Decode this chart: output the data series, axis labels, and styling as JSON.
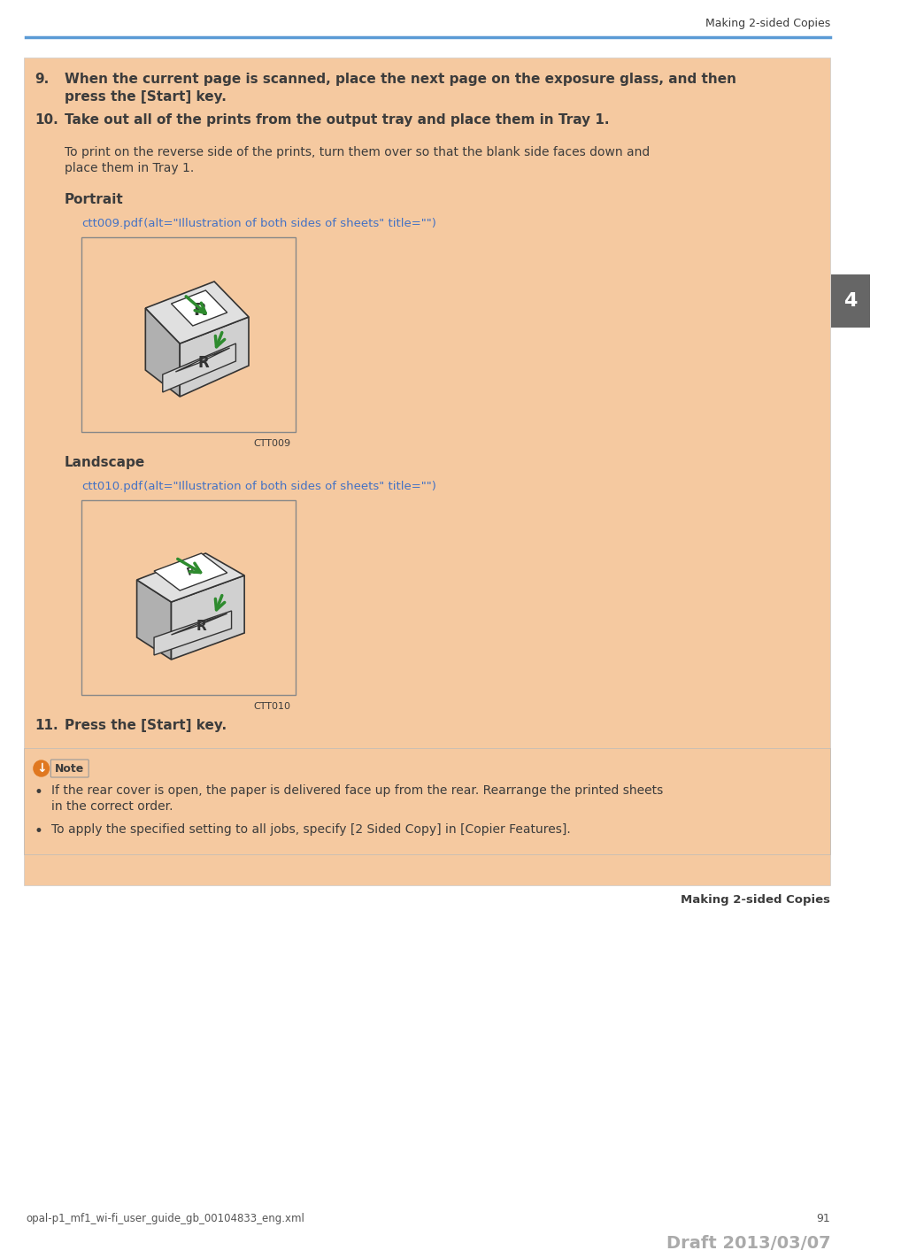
{
  "page_bg": "#ffffff",
  "content_bg": "#f5c9a0",
  "header_line_color": "#5b9bd5",
  "header_text": "Making 2-sided Copies",
  "tab_bg": "#666666",
  "tab_text": "4",
  "tab_text_color": "#ffffff",
  "footer_left": "opal-p1_mf1_wi-fi_user_guide_gb_00104833_eng.xml",
  "footer_page": "91",
  "footer_draft": "Draft 2013/03/07",
  "note_icon_color": "#e07820",
  "portrait_label": "Portrait",
  "portrait_link": "ctt009.pdf",
  "portrait_alt": " (alt=\"Illustration of both sides of sheets\" title=\"\")",
  "portrait_caption": "CTT009",
  "landscape_label": "Landscape",
  "landscape_link": "ctt010.pdf",
  "landscape_alt": " (alt=\"Illustration of both sides of sheets\" title=\"\")",
  "landscape_caption": "CTT010",
  "item11_bold": "Press the [Start] key.",
  "item11_num": "11.",
  "note_label": "Note",
  "bullet1_line1": "If the rear cover is open, the paper is delivered face up from the rear. Rearrange the printed sheets",
  "bullet1_line2": "in the correct order.",
  "bullet2": "To apply the specified setting to all jobs, specify [2 Sided Copy] in [Copier Features].",
  "section_footer": "Making 2-sided Copies",
  "link_color": "#4472c4",
  "body_text_color": "#3c3c3c",
  "bold_text_color": "#3c3c3c"
}
